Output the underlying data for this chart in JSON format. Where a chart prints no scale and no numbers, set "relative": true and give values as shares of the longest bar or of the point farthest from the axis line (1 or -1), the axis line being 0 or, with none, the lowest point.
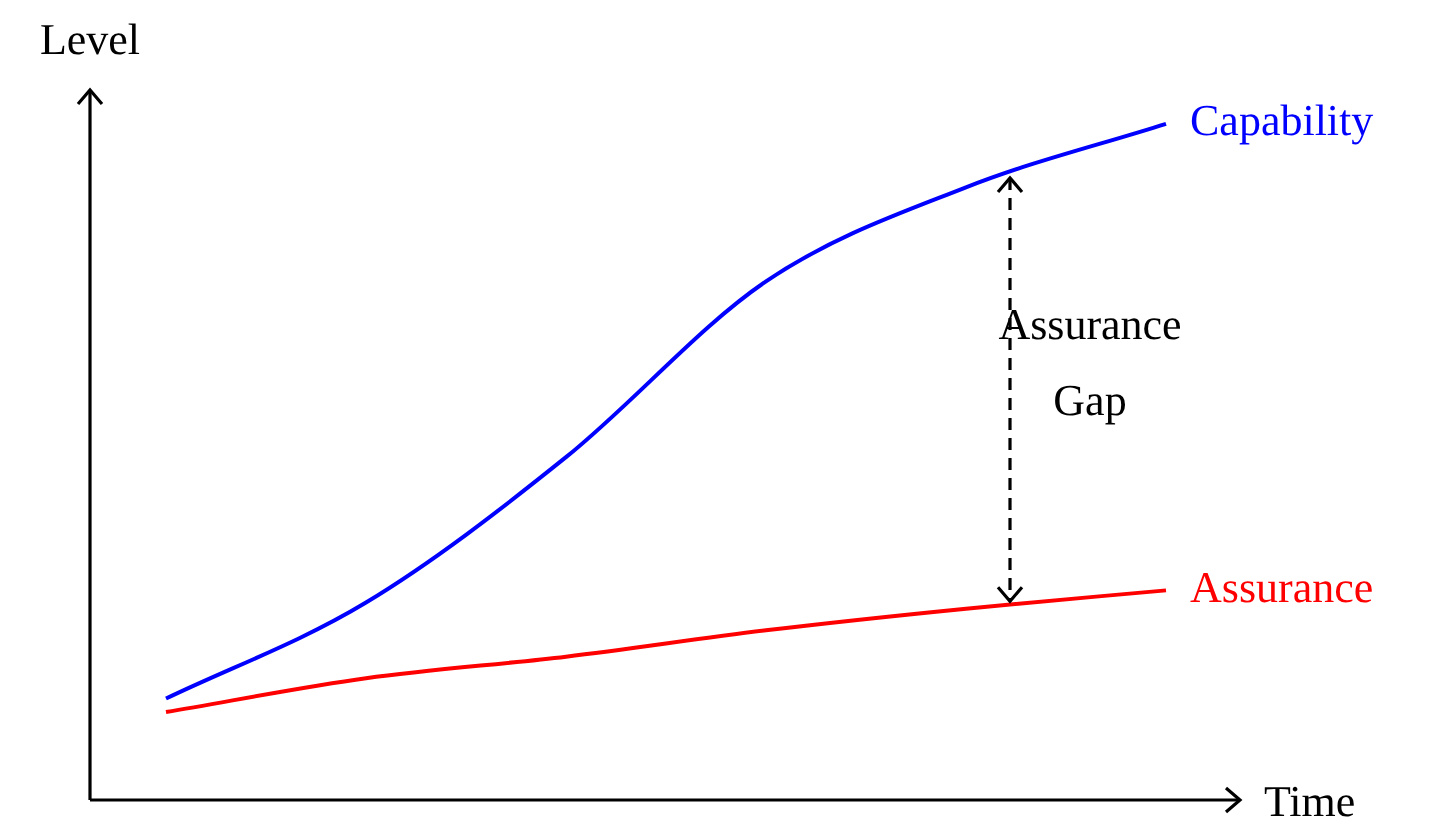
{
  "chart_data": {
    "type": "line",
    "relative": true,
    "xlabel": "Time",
    "ylabel": "Level",
    "categories": [
      null,
      null,
      null,
      null,
      null,
      null
    ],
    "series": [
      {
        "name": "Capability",
        "color": "#0000ff",
        "values": [
          0.15,
          0.292,
          0.507,
          0.767,
          0.906,
          1
        ]
      },
      {
        "name": "Assurance",
        "color": "#ff0000",
        "values": [
          0.13,
          0.18,
          0.212,
          0.251,
          0.283,
          0.31
        ]
      }
    ],
    "annotations": [
      "Assurance Gap"
    ],
    "legend": false,
    "marker": "none",
    "line_style": "solid"
  }
}
